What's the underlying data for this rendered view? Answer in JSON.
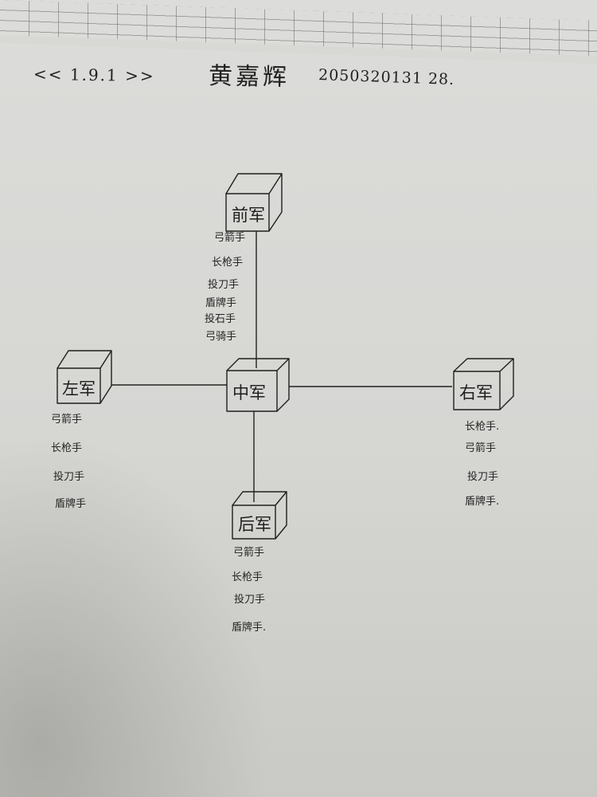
{
  "header": {
    "tag": "<< 1.9.1 >>",
    "name": "黄嘉辉",
    "student_id": "2050320131 28."
  },
  "formation": {
    "front": {
      "label": "前军",
      "roles": [
        "弓箭手",
        "长枪手",
        "投刀手",
        "盾牌手",
        "投石手",
        "弓骑手"
      ]
    },
    "left": {
      "label": "左军",
      "roles": [
        "弓箭手",
        "长枪手",
        "投刀手",
        "盾牌手"
      ]
    },
    "center": {
      "label": "中军"
    },
    "right": {
      "label": "右军",
      "roles": [
        "长枪手.",
        "弓箭手",
        "投刀手",
        "盾牌手."
      ]
    },
    "rear": {
      "label": "后军",
      "roles": [
        "弓箭手",
        "长枪手",
        "投刀手",
        "盾牌手."
      ]
    }
  }
}
